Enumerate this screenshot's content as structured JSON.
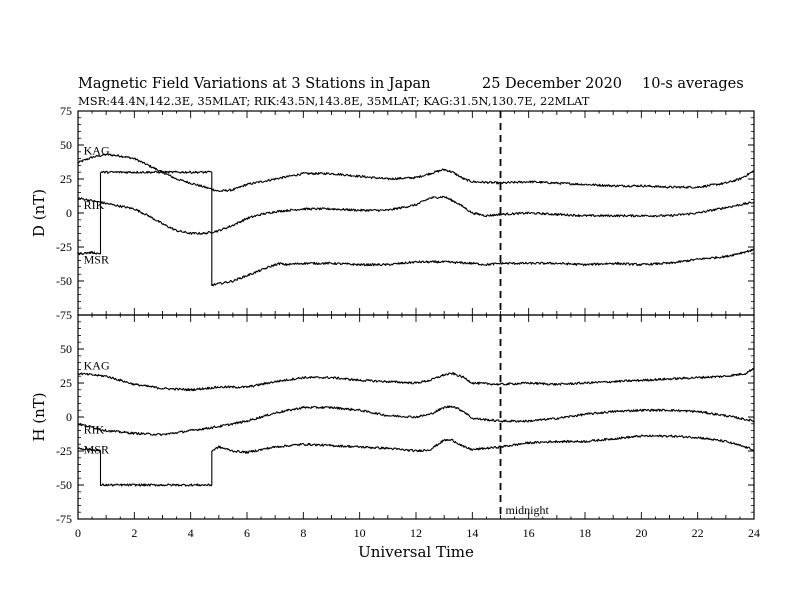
{
  "chart_data": {
    "type": "line",
    "title": "Magnetic Field Variations at 3 Stations in Japan",
    "date": "25 December 2020",
    "averaging": "10-s averages",
    "subtitle": "MSR:44.4N,142.3E, 35MLAT;  RIK:43.5N,143.8E, 35MLAT;  KAG:31.5N,130.7E, 22MLAT",
    "xlabel": "Universal Time",
    "xlim": [
      0,
      24
    ],
    "xticks": [
      0,
      2,
      4,
      6,
      8,
      10,
      12,
      14,
      16,
      18,
      20,
      22,
      24
    ],
    "annotation": {
      "x": 15,
      "label": "midnight"
    },
    "panels": [
      {
        "ylabel": "D (nT)",
        "ylim": [
          -75,
          75
        ],
        "yticks": [
          75,
          50,
          25,
          0,
          -25,
          -50,
          -75
        ],
        "series": [
          {
            "name": "KAG",
            "label_at": [
              0.2,
              43
            ],
            "x": [
              0,
              0.5,
              1,
              1.5,
              2,
              2.5,
              3,
              3.5,
              4,
              4.5,
              5,
              5.5,
              6,
              6.5,
              7,
              7.5,
              8,
              9,
              10,
              11,
              12,
              12.5,
              13,
              13.3,
              13.7,
              14,
              15,
              16,
              17,
              18,
              19,
              20,
              21,
              22,
              23,
              23.5,
              24
            ],
            "y": [
              37,
              41,
              43,
              42,
              40,
              35,
              30,
              25,
              22,
              19,
              16,
              17,
              21,
              23,
              25,
              27,
              29,
              29,
              27,
              25,
              26,
              29,
              32,
              30,
              25,
              23,
              22,
              23,
              22,
              21,
              20,
              20,
              19,
              19,
              22,
              25,
              31
            ]
          },
          {
            "name": "RIK",
            "label_at": [
              0.2,
              3
            ],
            "x": [
              0,
              0.5,
              1,
              1.5,
              2,
              2.5,
              3,
              3.5,
              4,
              4.5,
              5,
              5.5,
              6,
              6.5,
              7,
              7.5,
              8,
              9,
              10,
              11,
              12,
              12.5,
              13,
              13.5,
              14,
              14.5,
              15,
              16,
              17,
              18,
              19,
              20,
              21,
              22,
              23,
              24
            ],
            "y": [
              11,
              9,
              7,
              5,
              3,
              -2,
              -8,
              -13,
              -15,
              -15,
              -13,
              -9,
              -4,
              -1,
              1,
              2,
              3,
              3,
              2,
              2,
              6,
              11,
              12,
              7,
              0,
              -2,
              -1,
              0,
              -1,
              -2,
              -2,
              -2,
              -2,
              0,
              4,
              8
            ]
          },
          {
            "name": "MSR",
            "label_at": [
              0.2,
              -37
            ],
            "x": [
              0,
              0.5,
              0.8,
              0.8,
              4.75,
              4.75,
              5,
              5.5,
              6,
              6.5,
              7,
              7.2,
              7.3,
              8,
              8.5,
              9,
              10,
              11,
              12,
              13,
              14,
              14.5,
              15,
              16,
              17,
              18,
              19,
              20,
              20.8,
              21,
              22,
              23,
              24
            ],
            "y": [
              -30,
              -29,
              -30,
              30,
              30,
              -53,
              -52,
              -50,
              -46,
              -42,
              -38,
              -37,
              -38,
              -37,
              -37,
              -37,
              -38,
              -38,
              -36,
              -36,
              -37,
              -38,
              -37,
              -37,
              -37,
              -38,
              -37,
              -38,
              -37,
              -37,
              -34,
              -32,
              -27
            ]
          }
        ]
      },
      {
        "ylabel": "H (nT)",
        "ylim": [
          -75,
          75
        ],
        "yticks": [
          75,
          50,
          25,
          0,
          -25,
          -50,
          -75
        ],
        "series": [
          {
            "name": "KAG",
            "label_at": [
              0.2,
              35
            ],
            "x": [
              0,
              1,
              2,
              3,
              4,
              5,
              6,
              7,
              8,
              9,
              10,
              11,
              12,
              12.5,
              13,
              13.3,
              13.7,
              14,
              15,
              16,
              17,
              18,
              19,
              20,
              21,
              22,
              23,
              23.7,
              24
            ],
            "y": [
              32,
              30,
              24,
              21,
              20,
              22,
              22,
              26,
              29,
              29,
              27,
              26,
              25,
              27,
              31,
              32,
              29,
              25,
              24,
              25,
              24,
              25,
              26,
              27,
              28,
              29,
              30,
              32,
              36
            ]
          },
          {
            "name": "RIK",
            "label_at": [
              0.2,
              -12
            ],
            "x": [
              0,
              1,
              2,
              3,
              4,
              5,
              6,
              7,
              8,
              9,
              10,
              11,
              12,
              12.5,
              13,
              13.3,
              13.7,
              14,
              15,
              16,
              17,
              18,
              19,
              20,
              21,
              22,
              23,
              24
            ],
            "y": [
              -5,
              -10,
              -12,
              -13,
              -10,
              -7,
              -3,
              3,
              7,
              7,
              5,
              1,
              0,
              2,
              7,
              8,
              4,
              -1,
              -3,
              -3,
              -1,
              2,
              4,
              5,
              5,
              4,
              1,
              -3
            ]
          },
          {
            "name": "MSR",
            "label_at": [
              0.2,
              -27
            ],
            "x": [
              0,
              0.5,
              0.8,
              0.8,
              4.75,
              4.75,
              5,
              5.5,
              6,
              6.5,
              7,
              8,
              9,
              10,
              11,
              12,
              12.5,
              13,
              13.3,
              13.7,
              14,
              15,
              16,
              17,
              18,
              19,
              20,
              21,
              22,
              23,
              24
            ],
            "y": [
              -23,
              -24,
              -25,
              -50,
              -50,
              -25,
              -22,
              -25,
              -26,
              -24,
              -22,
              -20,
              -21,
              -22,
              -23,
              -25,
              -24,
              -17,
              -17,
              -22,
              -24,
              -22,
              -19,
              -18,
              -18,
              -16,
              -14,
              -14,
              -15,
              -18,
              -24
            ]
          }
        ]
      }
    ]
  }
}
